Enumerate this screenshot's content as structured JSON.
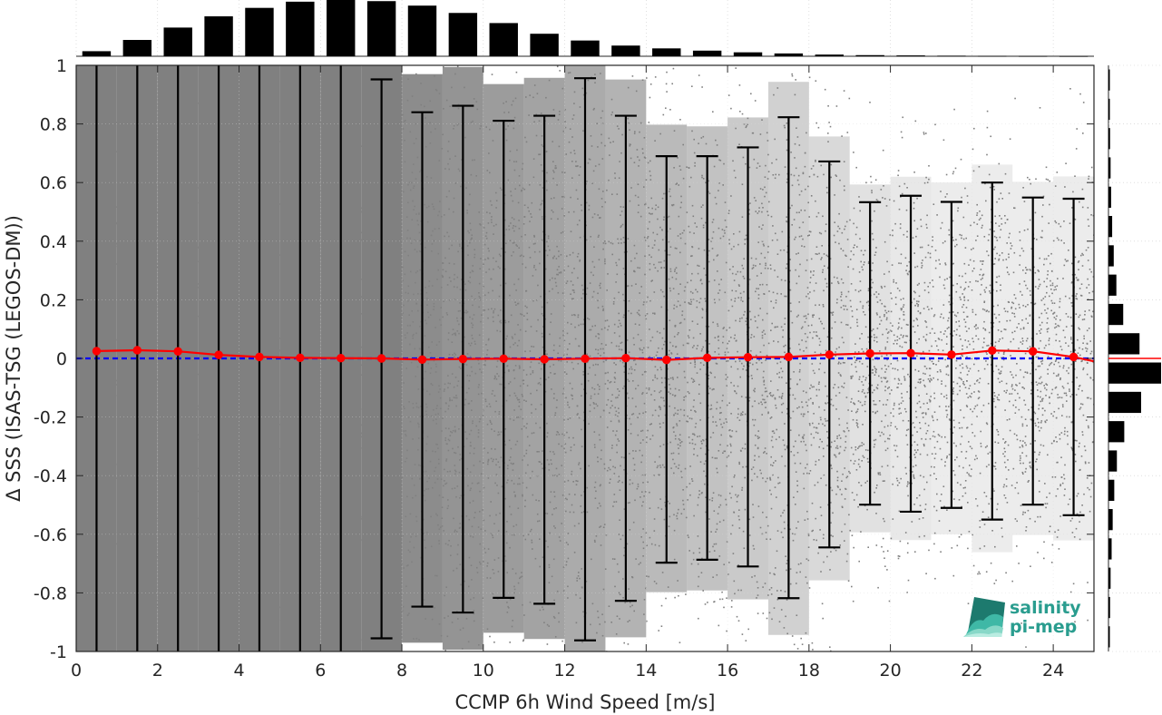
{
  "chart_data": {
    "type": "scatter",
    "xlabel": "CCMP 6h Wind Speed [m/s]",
    "ylabel": "Δ SSS (ISAS-TSG (LEGOS-DM))",
    "xlim": [
      0,
      25
    ],
    "ylim": [
      -1,
      1
    ],
    "x_ticks": [
      0,
      2,
      4,
      6,
      8,
      10,
      12,
      14,
      16,
      18,
      20,
      22,
      24
    ],
    "y_ticks": [
      -1,
      -0.8,
      -0.6,
      -0.4,
      -0.2,
      0,
      0.2,
      0.4,
      0.6,
      0.8,
      1
    ],
    "grid": true,
    "reference_line": {
      "y": 0,
      "color": "#0000ff",
      "style": "dashed"
    },
    "scatter_color": "#808080",
    "binned_series": {
      "color": "#ff0000",
      "x": [
        0.5,
        1.5,
        2.5,
        3.5,
        4.5,
        5.5,
        6.5,
        7.5,
        8.5,
        9.5,
        10.5,
        11.5,
        12.5,
        13.5,
        14.5,
        15.5,
        16.5,
        17.5,
        18.5,
        19.5,
        20.5,
        21.5,
        22.5,
        23.5,
        24.5
      ],
      "mean": [
        0.025,
        0.028,
        0.024,
        0.012,
        0.005,
        0.002,
        0.001,
        0.0,
        -0.004,
        -0.002,
        -0.001,
        -0.003,
        -0.001,
        0.001,
        -0.005,
        0.002,
        0.004,
        0.005,
        0.013,
        0.017,
        0.018,
        0.013,
        0.027,
        0.024,
        0.005
      ],
      "err_upper": [
        1.0,
        1.0,
        1.0,
        1.0,
        1.0,
        1.0,
        1.0,
        0.952,
        0.84,
        0.862,
        0.811,
        0.828,
        0.956,
        0.828,
        0.69,
        0.69,
        0.72,
        0.823,
        0.672,
        0.533,
        0.555,
        0.534,
        0.6,
        0.549,
        0.545
      ],
      "err_lower": [
        -1.0,
        -1.0,
        -1.0,
        -1.0,
        -1.0,
        -1.0,
        -1.0,
        -0.955,
        -0.847,
        -0.867,
        -0.817,
        -0.837,
        -0.962,
        -0.827,
        -0.697,
        -0.687,
        -0.71,
        -0.818,
        -0.645,
        -0.499,
        -0.523,
        -0.51,
        -0.55,
        -0.499,
        -0.535
      ],
      "tail_end": {
        "x": 25,
        "y": -0.01
      }
    },
    "top_histogram": {
      "bin_centers": [
        0.5,
        1.5,
        2.5,
        3.5,
        4.5,
        5.5,
        6.5,
        7.5,
        8.5,
        9.5,
        10.5,
        11.5,
        12.5,
        13.5,
        14.5,
        15.5,
        16.5,
        17.5,
        18.5,
        19.5,
        20.5,
        21.5,
        22.5,
        23.5,
        24.5
      ],
      "relative_counts": [
        0.09,
        0.29,
        0.51,
        0.71,
        0.86,
        0.97,
        1.0,
        0.98,
        0.9,
        0.77,
        0.59,
        0.4,
        0.28,
        0.19,
        0.14,
        0.1,
        0.07,
        0.05,
        0.03,
        0.02,
        0.015,
        0.01,
        0.006,
        0.004,
        0.003
      ]
    },
    "right_histogram": {
      "bin_centers": [
        -0.95,
        -0.85,
        -0.75,
        -0.65,
        -0.55,
        -0.45,
        -0.35,
        -0.25,
        -0.15,
        -0.05,
        0.05,
        0.15,
        0.25,
        0.35,
        0.45,
        0.55,
        0.65,
        0.75,
        0.85,
        0.95
      ],
      "relative_counts": [
        0.02,
        0.03,
        0.04,
        0.06,
        0.08,
        0.11,
        0.16,
        0.3,
        0.62,
        1.0,
        0.59,
        0.28,
        0.15,
        0.1,
        0.07,
        0.05,
        0.04,
        0.03,
        0.02,
        0.01
      ],
      "median_line": {
        "y": 0,
        "color": "#ff0000"
      }
    }
  },
  "logo": {
    "line1": "salinity",
    "line2": "pi-mep",
    "text_color": "#2a9d8f",
    "icon_colors": [
      "#1d7a6e",
      "#3fb8a6",
      "#88d8c8",
      "#b9ece1"
    ]
  }
}
